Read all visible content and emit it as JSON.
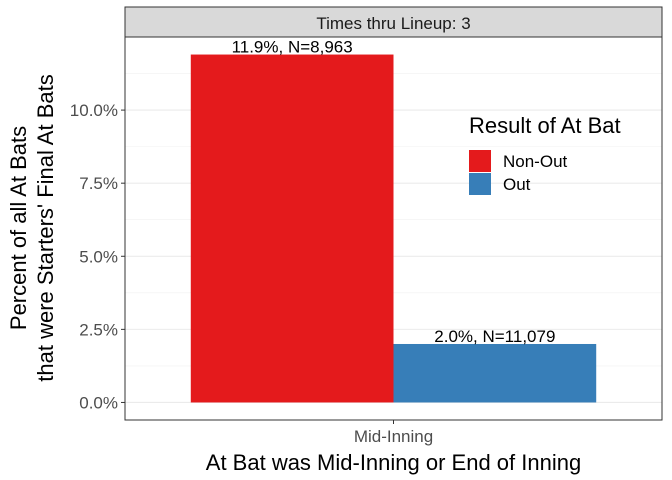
{
  "chart_data": {
    "type": "bar",
    "facet": "Times thru Lineup: 3",
    "categories": [
      "Mid-Inning"
    ],
    "series": [
      {
        "name": "Non-Out",
        "color": "#e41a1c",
        "values": [
          11.9
        ],
        "label": "11.9%, N=8,963"
      },
      {
        "name": "Out",
        "color": "#377eb8",
        "values": [
          2.0
        ],
        "label": "2.0%, N=11,079"
      }
    ],
    "ylim": [
      -0.6,
      12.5
    ],
    "yticks": [
      0,
      2.5,
      5,
      7.5,
      10
    ],
    "ytick_labels": [
      "0.0%",
      "2.5%",
      "5.0%",
      "7.5%",
      "10.0%"
    ],
    "ylabel_lines": [
      "Percent of all At Bats",
      "that were Starters' Final At Bats"
    ],
    "xlabel": "At Bat was Mid-Inning or End of Inning",
    "legend_title": "Result of At Bat",
    "legend_position": "right-inside",
    "grid": true
  }
}
